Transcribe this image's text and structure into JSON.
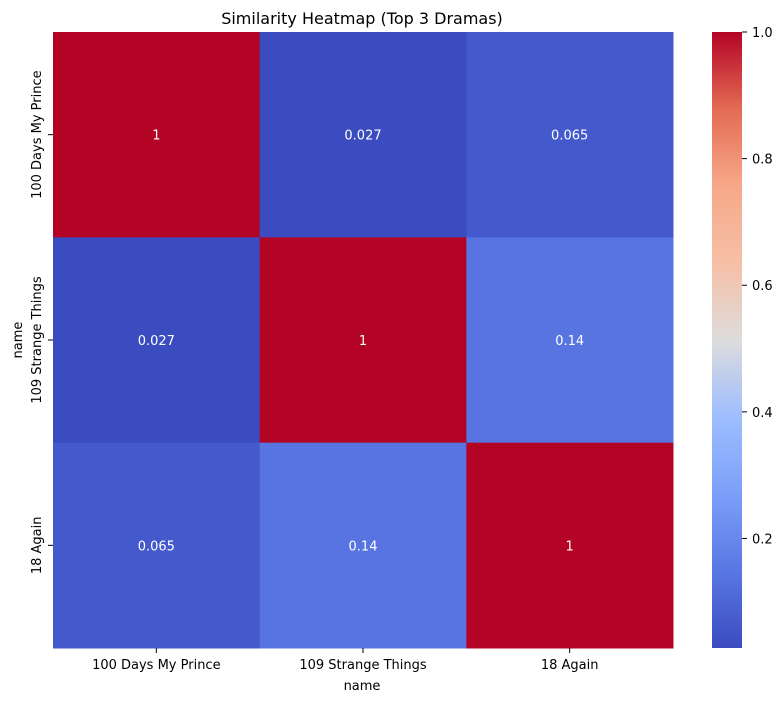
{
  "chart_data": {
    "type": "heatmap",
    "title": "Similarity Heatmap (Top 3 Dramas)",
    "xlabel": "name",
    "ylabel": "name",
    "x_categories": [
      "100 Days My Prince",
      "109 Strange Things",
      "18 Again"
    ],
    "y_categories": [
      "100 Days My Prince",
      "109 Strange Things",
      "18 Again"
    ],
    "values": [
      [
        1,
        0.027,
        0.065
      ],
      [
        0.027,
        1,
        0.14
      ],
      [
        0.065,
        0.14,
        1
      ]
    ],
    "annotations": [
      [
        "1",
        "0.027",
        "0.065"
      ],
      [
        "0.027",
        "1",
        "0.14"
      ],
      [
        "0.065",
        "0.14",
        "1"
      ]
    ],
    "colormap": "coolwarm",
    "colorbar": {
      "range": [
        0.027,
        1.0
      ],
      "ticks": [
        0.2,
        0.4,
        0.6,
        0.8,
        1.0
      ],
      "tick_labels": [
        "0.2",
        "0.4",
        "0.6",
        "0.8",
        "1.0"
      ]
    }
  }
}
